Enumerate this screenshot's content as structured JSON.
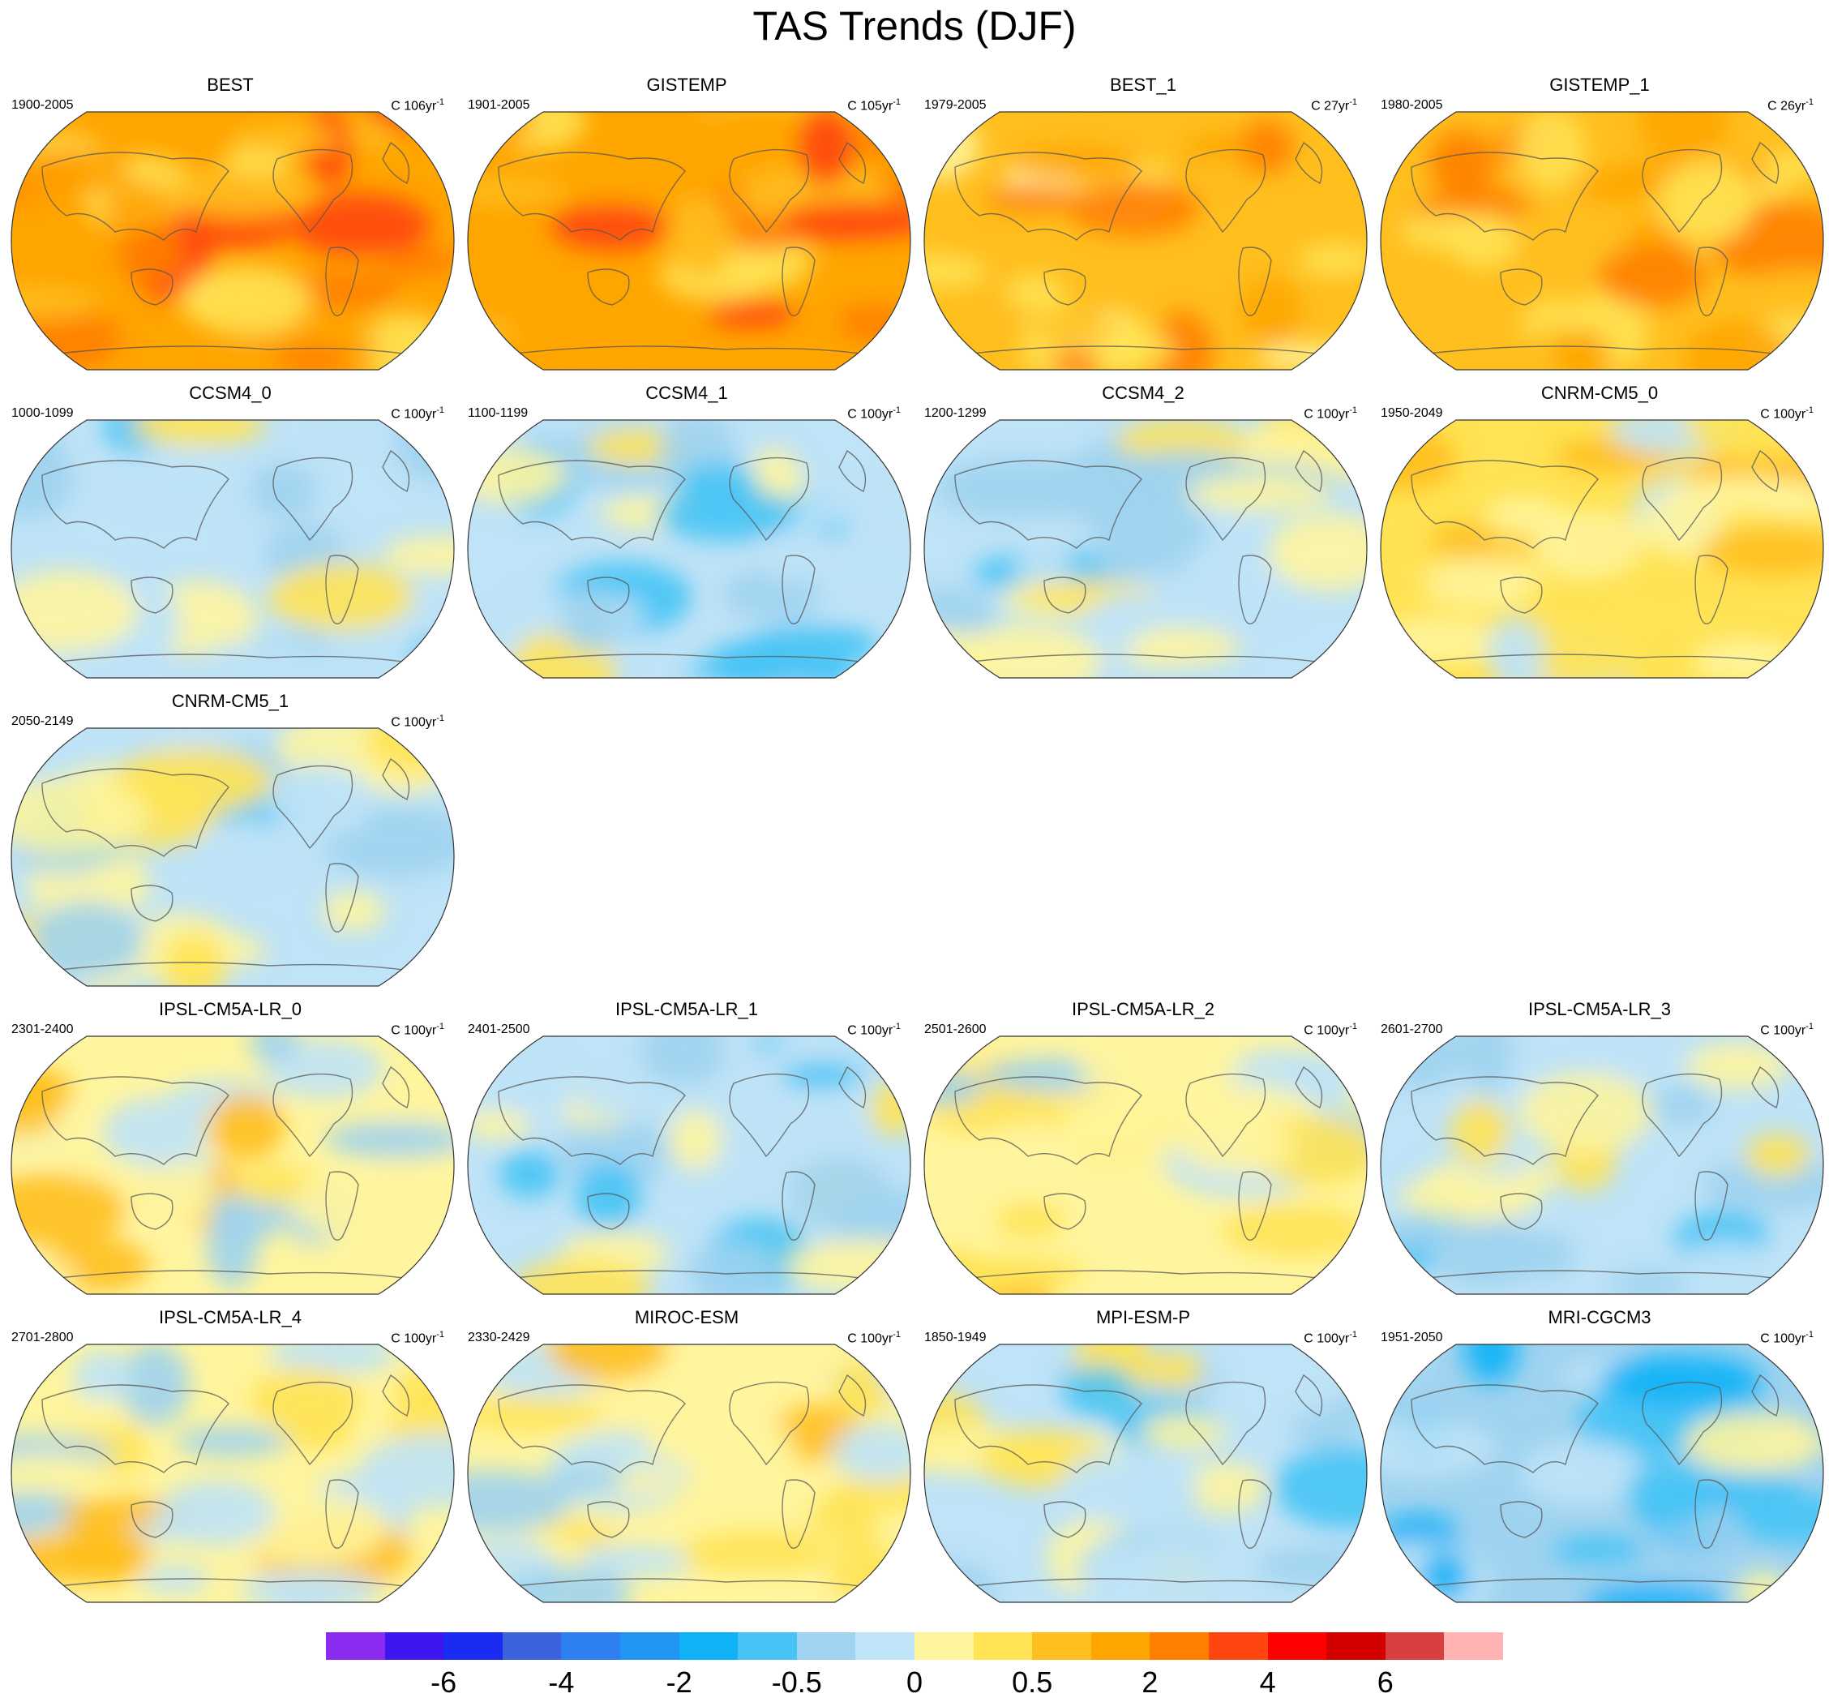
{
  "title": "TAS Trends (DJF)",
  "unit_label": "C",
  "unit_exp": "-1",
  "panels": [
    {
      "name": "BEST",
      "period": "1900-2005",
      "unit_years": "106yr",
      "col": 0,
      "row": 0,
      "mean": 2.4,
      "color": "#ffa500"
    },
    {
      "name": "GISTEMP",
      "period": "1901-2005",
      "unit_years": "105yr",
      "col": 1,
      "row": 0,
      "mean": 2.3,
      "color": "#ffa500"
    },
    {
      "name": "BEST_1",
      "period": "1979-2005",
      "unit_years": "27yr",
      "col": 2,
      "row": 0,
      "mean": 1.4,
      "color": "#ffbf1e"
    },
    {
      "name": "GISTEMP_1",
      "period": "1980-2005",
      "unit_years": "26yr",
      "col": 3,
      "row": 0,
      "mean": 1.3,
      "color": "#ffbf1e"
    },
    {
      "name": "CCSM4_0",
      "period": "1000-1099",
      "unit_years": "100yr",
      "col": 0,
      "row": 1,
      "mean": -0.3,
      "color": "#bfe3f7"
    },
    {
      "name": "CCSM4_1",
      "period": "1100-1199",
      "unit_years": "100yr",
      "col": 1,
      "row": 1,
      "mean": -0.2,
      "color": "#bfe3f7"
    },
    {
      "name": "CCSM4_2",
      "period": "1200-1299",
      "unit_years": "100yr",
      "col": 2,
      "row": 1,
      "mean": -0.2,
      "color": "#bfe3f7"
    },
    {
      "name": "CNRM-CM5_0",
      "period": "1950-2049",
      "unit_years": "100yr",
      "col": 3,
      "row": 1,
      "mean": 0.3,
      "color": "#ffe354"
    },
    {
      "name": "CNRM-CM5_1",
      "period": "2050-2149",
      "unit_years": "100yr",
      "col": 0,
      "row": 2,
      "mean": -0.1,
      "color": "#bfe3f7"
    },
    {
      "name": "IPSL-CM5A-LR_0",
      "period": "2301-2400",
      "unit_years": "100yr",
      "col": 0,
      "row": 3,
      "mean": 0.1,
      "color": "#fff59e"
    },
    {
      "name": "IPSL-CM5A-LR_1",
      "period": "2401-2500",
      "unit_years": "100yr",
      "col": 1,
      "row": 3,
      "mean": -0.1,
      "color": "#bfe3f7"
    },
    {
      "name": "IPSL-CM5A-LR_2",
      "period": "2501-2600",
      "unit_years": "100yr",
      "col": 2,
      "row": 3,
      "mean": 0.1,
      "color": "#fff59e"
    },
    {
      "name": "IPSL-CM5A-LR_3",
      "period": "2601-2700",
      "unit_years": "100yr",
      "col": 3,
      "row": 3,
      "mean": -0.2,
      "color": "#bfe3f7"
    },
    {
      "name": "IPSL-CM5A-LR_4",
      "period": "2701-2800",
      "unit_years": "100yr",
      "col": 0,
      "row": 4,
      "mean": 0.2,
      "color": "#fff59e"
    },
    {
      "name": "MIROC-ESM",
      "period": "2330-2429",
      "unit_years": "100yr",
      "col": 1,
      "row": 4,
      "mean": 0.2,
      "color": "#fff59e"
    },
    {
      "name": "MPI-ESM-P",
      "period": "1850-1949",
      "unit_years": "100yr",
      "col": 2,
      "row": 4,
      "mean": -0.3,
      "color": "#bfe3f7"
    },
    {
      "name": "MRI-CGCM3",
      "period": "1951-2050",
      "unit_years": "100yr",
      "col": 3,
      "row": 4,
      "mean": -0.4,
      "color": "#9fd3f0"
    }
  ],
  "colorbar": {
    "colors": [
      "#8c2bf0",
      "#3e17f0",
      "#1a2bf2",
      "#3d62dd",
      "#2e7ff0",
      "#2196f3",
      "#0fb2f7",
      "#47c4f5",
      "#9fd3f0",
      "#bfe3f7",
      "#fff59e",
      "#ffe354",
      "#ffbf1e",
      "#ffa500",
      "#ff7f00",
      "#ff4510",
      "#ff0000",
      "#d40000",
      "#d93f3f",
      "#ffb3b3"
    ],
    "labels": [
      "-6",
      "-4",
      "-2",
      "-0.5",
      "0",
      "0.5",
      "2",
      "4",
      "6"
    ],
    "label_boundaries": [
      2,
      4,
      6,
      8,
      10,
      12,
      14,
      16,
      18
    ]
  }
}
